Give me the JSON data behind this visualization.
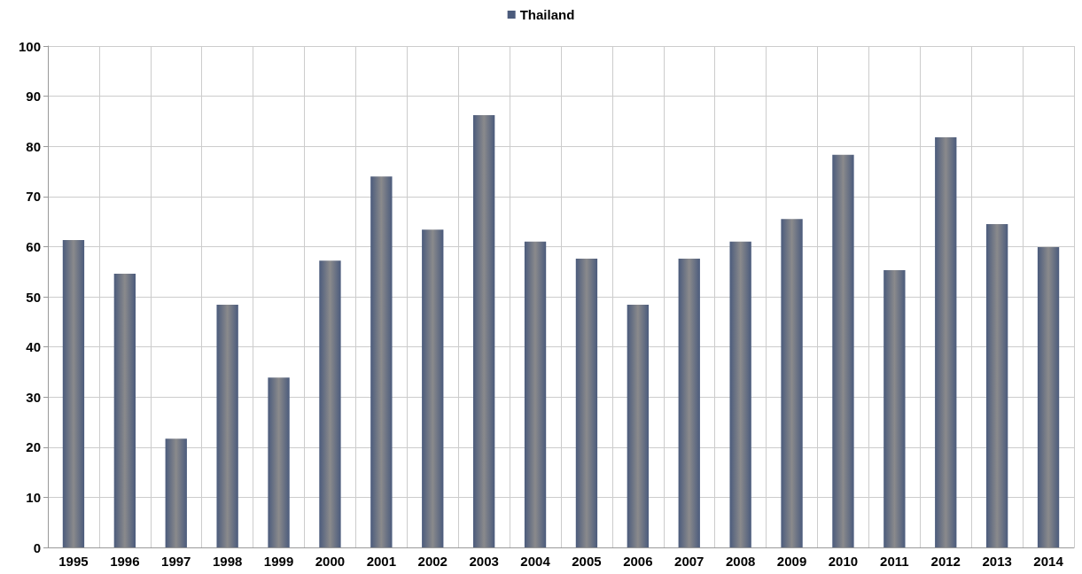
{
  "chart_data": {
    "type": "bar",
    "categories": [
      "1995",
      "1996",
      "1997",
      "1998",
      "1999",
      "2000",
      "2001",
      "2002",
      "2003",
      "2004",
      "2005",
      "2006",
      "2007",
      "2008",
      "2009",
      "2010",
      "2011",
      "2012",
      "2013",
      "2014"
    ],
    "series": [
      {
        "name": "Thailand",
        "color": "#4b5b7c",
        "values": [
          61.3,
          54.6,
          21.7,
          48.4,
          33.9,
          57.2,
          74.0,
          63.4,
          86.2,
          61.0,
          57.6,
          48.4,
          57.6,
          61.0,
          65.5,
          78.3,
          55.3,
          81.8,
          64.5,
          59.9
        ]
      }
    ],
    "ylim": [
      0,
      100
    ],
    "yticks": [
      0,
      10,
      20,
      30,
      40,
      50,
      60,
      70,
      80,
      90,
      100
    ],
    "grid": true,
    "legend": "top"
  }
}
